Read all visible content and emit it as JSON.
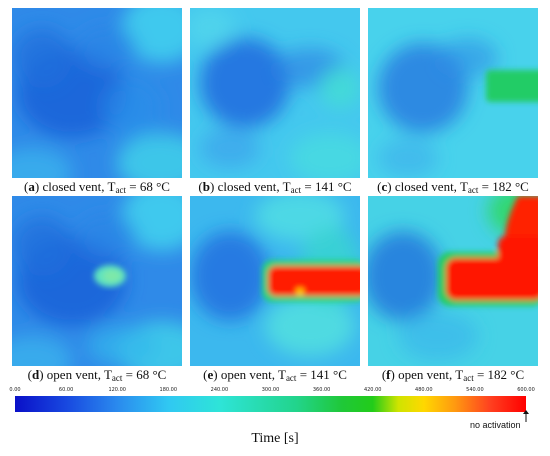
{
  "chart_data": {
    "type": "heatmap",
    "panels": [
      {
        "letter": "a",
        "label": "closed vent, T",
        "sub": "act",
        "value": " = 68 °C",
        "hot_region": 0
      },
      {
        "letter": "b",
        "label": "closed vent, T",
        "sub": "act",
        "value": " = 141 °C",
        "hot_region": 1
      },
      {
        "letter": "c",
        "label": "closed vent, T",
        "sub": "act",
        "value": " = 182 °C",
        "hot_region": 2
      },
      {
        "letter": "d",
        "label": "open vent, T",
        "sub": "act",
        "value": " = 68 °C",
        "hot_region": 3
      },
      {
        "letter": "e",
        "label": "open vent, T",
        "sub": "act",
        "value": " = 141 °C",
        "hot_region": 4
      },
      {
        "letter": "f",
        "label": "open vent, T",
        "sub": "act",
        "value": " = 182 °C",
        "hot_region": 5
      }
    ],
    "colorbar": {
      "min": 0,
      "max": 600,
      "ticks": [
        "0.00",
        "60.00",
        "120.00",
        "180.00",
        "240.00",
        "300.00",
        "360.00",
        "420.00",
        "480.00",
        "540.00",
        "600.00"
      ],
      "end_label": "no activation"
    },
    "xlabel": "Time [s]"
  },
  "colors": {
    "blue": "#1a6ee0",
    "cyan": "#34d2ea",
    "green": "#22cc44",
    "red": "#ff1a00"
  }
}
